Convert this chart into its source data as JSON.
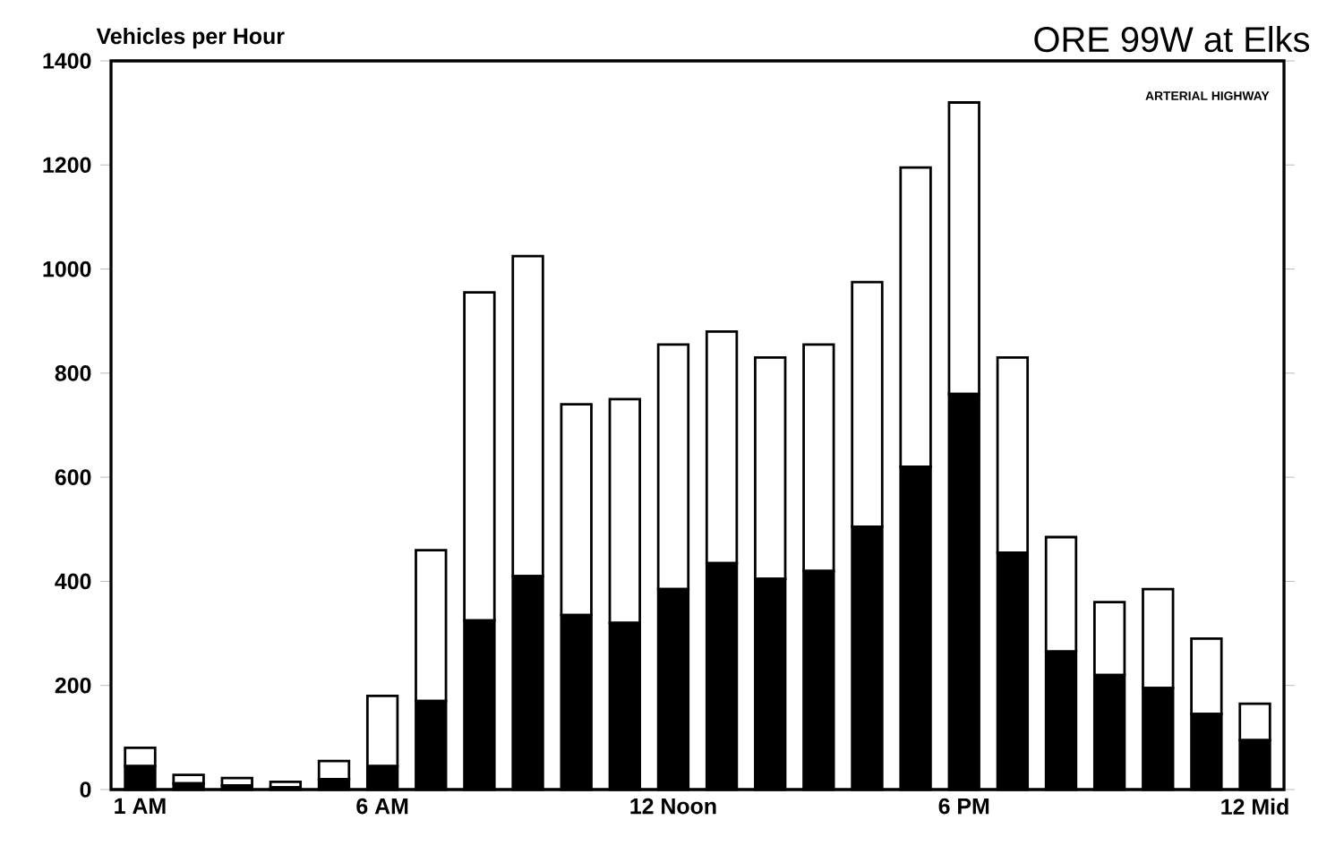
{
  "chart_data": {
    "type": "bar",
    "title": "ORE 99W at Elks",
    "ylabel": "Vehicles per Hour",
    "annotations": [
      "ARTERIAL HIGHWAY"
    ],
    "categories": [
      "1 AM",
      null,
      null,
      null,
      null,
      "6 AM",
      null,
      null,
      null,
      null,
      null,
      "12 Noon",
      null,
      null,
      null,
      null,
      null,
      "6 PM",
      null,
      null,
      null,
      null,
      null,
      "12 Mid"
    ],
    "stacked": true,
    "series": [
      {
        "color": "#000000",
        "values": [
          45,
          12,
          8,
          4,
          20,
          45,
          170,
          325,
          410,
          335,
          320,
          385,
          435,
          405,
          420,
          505,
          620,
          760,
          455,
          265,
          220,
          195,
          145,
          95
        ]
      },
      {
        "color": "#ffffff",
        "values": [
          35,
          16,
          14,
          11,
          35,
          135,
          290,
          630,
          615,
          405,
          430,
          470,
          445,
          425,
          435,
          470,
          575,
          560,
          375,
          220,
          140,
          190,
          145,
          70
        ]
      }
    ],
    "ylim": [
      0,
      1400
    ],
    "yticks": [
      0,
      200,
      400,
      600,
      800,
      1000,
      1200,
      1400
    ],
    "grid": false
  }
}
